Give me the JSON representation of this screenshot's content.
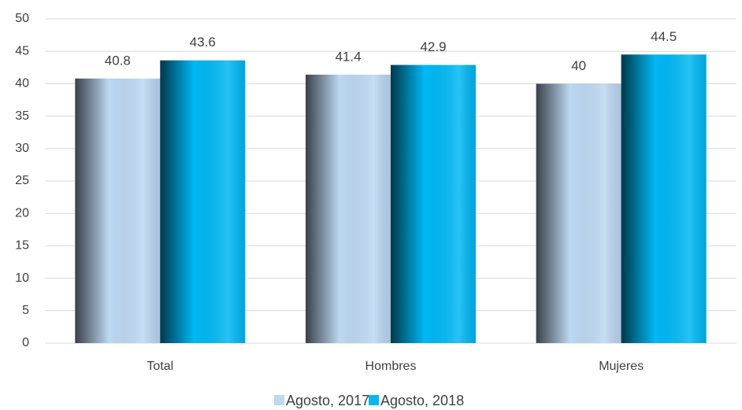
{
  "chart_data": {
    "type": "bar",
    "categories": [
      "Total",
      "Hombres",
      "Mujeres"
    ],
    "series": [
      {
        "name": "Agosto, 2017",
        "color": "#bcd8f2",
        "values": [
          40.8,
          41.4,
          40
        ]
      },
      {
        "name": "Agosto, 2018",
        "color": "#00b8f5",
        "values": [
          43.6,
          42.9,
          44.5
        ]
      }
    ],
    "ylim": [
      0,
      50
    ],
    "yticks": [
      0,
      5,
      10,
      15,
      20,
      25,
      30,
      35,
      40,
      45,
      50
    ],
    "grid": true
  }
}
